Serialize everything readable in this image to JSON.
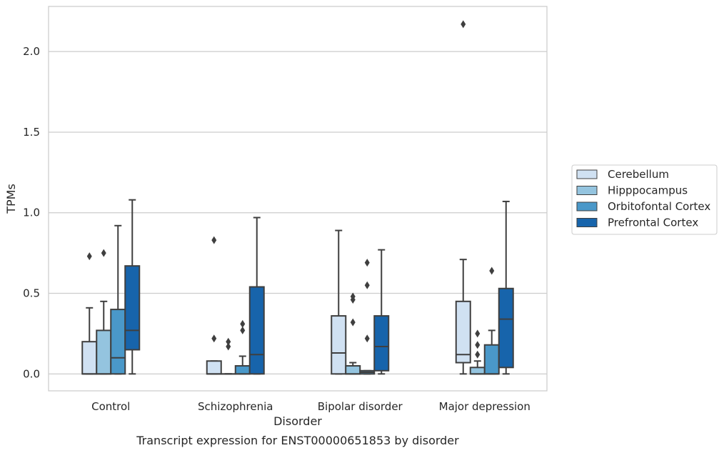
{
  "chart_data": {
    "type": "box",
    "caption": "Transcript expression for ENST00000651853 by disorder",
    "xlabel": "Disorder",
    "ylabel": "TPMs",
    "ylim": [
      -0.105,
      2.28
    ],
    "yticks": [
      0.0,
      0.5,
      1.0,
      1.5,
      2.0
    ],
    "ytick_labels": [
      "0.0",
      "0.5",
      "1.0",
      "1.5",
      "2.0"
    ],
    "grid": "horizontal",
    "legend_position": "right",
    "categories": [
      "Control",
      "Schizophrenia",
      "Bipolar disorder",
      "Major depression"
    ],
    "series": [
      {
        "name": "Cerebellum",
        "color": "#d0e1f2",
        "boxes": [
          {
            "whislo": 0.0,
            "q1": 0.0,
            "med": 0.0,
            "q3": 0.2,
            "whishi": 0.41,
            "fliers": [
              0.73
            ]
          },
          {
            "whislo": 0.0,
            "q1": 0.0,
            "med": 0.0,
            "q3": 0.08,
            "whishi": 0.08,
            "fliers": [
              0.22,
              0.83
            ]
          },
          {
            "whislo": 0.0,
            "q1": 0.0,
            "med": 0.13,
            "q3": 0.36,
            "whishi": 0.89,
            "fliers": []
          },
          {
            "whislo": 0.0,
            "q1": 0.07,
            "med": 0.12,
            "q3": 0.45,
            "whishi": 0.71,
            "fliers": [
              2.17
            ]
          }
        ]
      },
      {
        "name": "Hipppocampus",
        "color": "#94c4df",
        "boxes": [
          {
            "whislo": 0.0,
            "q1": 0.0,
            "med": 0.0,
            "q3": 0.27,
            "whishi": 0.45,
            "fliers": [
              0.75
            ]
          },
          {
            "whislo": 0.0,
            "q1": 0.0,
            "med": 0.0,
            "q3": 0.0,
            "whishi": 0.0,
            "fliers": [
              0.17,
              0.2
            ]
          },
          {
            "whislo": 0.0,
            "q1": 0.0,
            "med": 0.0,
            "q3": 0.05,
            "whishi": 0.07,
            "fliers": [
              0.32,
              0.46,
              0.48
            ]
          },
          {
            "whislo": 0.0,
            "q1": 0.0,
            "med": 0.0,
            "q3": 0.04,
            "whishi": 0.08,
            "fliers": [
              0.12,
              0.18,
              0.25
            ]
          }
        ]
      },
      {
        "name": "Orbitofontal Cortex",
        "color": "#4a98c9",
        "boxes": [
          {
            "whislo": 0.0,
            "q1": 0.0,
            "med": 0.1,
            "q3": 0.4,
            "whishi": 0.92,
            "fliers": []
          },
          {
            "whislo": 0.0,
            "q1": 0.0,
            "med": 0.0,
            "q3": 0.05,
            "whishi": 0.11,
            "fliers": [
              0.27,
              0.31
            ]
          },
          {
            "whislo": 0.0,
            "q1": 0.0,
            "med": 0.01,
            "q3": 0.02,
            "whishi": 0.02,
            "fliers": [
              0.22,
              0.55,
              0.69
            ]
          },
          {
            "whislo": 0.0,
            "q1": 0.0,
            "med": 0.0,
            "q3": 0.18,
            "whishi": 0.27,
            "fliers": [
              0.64
            ]
          }
        ]
      },
      {
        "name": "Prefrontal Cortex",
        "color": "#1764ab",
        "boxes": [
          {
            "whislo": 0.0,
            "q1": 0.15,
            "med": 0.27,
            "q3": 0.67,
            "whishi": 1.08,
            "fliers": []
          },
          {
            "whislo": 0.0,
            "q1": 0.0,
            "med": 0.12,
            "q3": 0.54,
            "whishi": 0.97,
            "fliers": []
          },
          {
            "whislo": 0.0,
            "q1": 0.02,
            "med": 0.17,
            "q3": 0.36,
            "whishi": 0.77,
            "fliers": []
          },
          {
            "whislo": 0.0,
            "q1": 0.04,
            "med": 0.34,
            "q3": 0.53,
            "whishi": 1.07,
            "fliers": []
          }
        ]
      }
    ]
  }
}
